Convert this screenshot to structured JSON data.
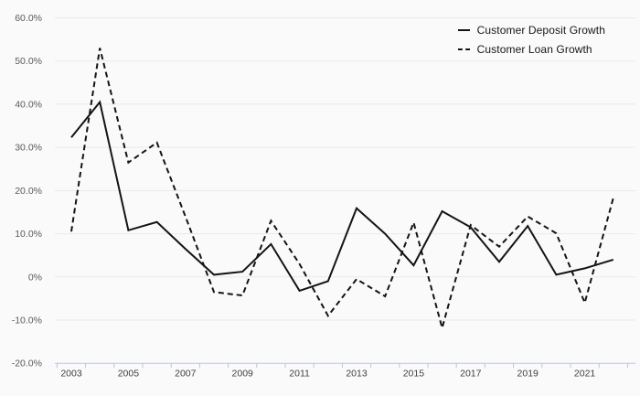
{
  "chart_data": {
    "type": "line",
    "x": [
      2003,
      2004,
      2005,
      2006,
      2007,
      2008,
      2009,
      2010,
      2011,
      2012,
      2013,
      2014,
      2015,
      2016,
      2017,
      2018,
      2019,
      2020,
      2021,
      2022
    ],
    "series": [
      {
        "name": "Customer Deposit Growth",
        "style": "solid",
        "values": [
          32.3,
          40.5,
          10.8,
          12.7,
          6.5,
          0.5,
          1.2,
          7.6,
          -3.2,
          -1.0,
          15.9,
          10.0,
          2.7,
          15.2,
          11.5,
          3.5,
          11.8,
          0.5,
          2.0,
          4.0
        ]
      },
      {
        "name": "Customer Loan Growth",
        "style": "dashed",
        "values": [
          10.5,
          53.0,
          26.5,
          31.1,
          14.0,
          -3.5,
          -4.3,
          13.0,
          3.0,
          -9.0,
          -0.5,
          -4.5,
          12.6,
          -11.8,
          12.0,
          7.0,
          14.0,
          10.1,
          -6.0,
          18.3
        ]
      }
    ],
    "title": "",
    "xlabel": "",
    "ylabel": "",
    "ylim": [
      -20,
      60
    ],
    "ytick_values": [
      60,
      50,
      40,
      30,
      20,
      10,
      0,
      -10,
      -20
    ],
    "ytick_labels": [
      "60.0%",
      "50.0%",
      "40.0%",
      "30.0%",
      "20.0%",
      "10.0%",
      "0%",
      "-10.0%",
      "-20.0%"
    ],
    "xtick_labels": [
      "2003",
      "2005",
      "2007",
      "2009",
      "2011",
      "2013",
      "2015",
      "2017",
      "2019",
      "2021"
    ],
    "xtick_years": [
      2003,
      2005,
      2007,
      2009,
      2011,
      2013,
      2015,
      2017,
      2019,
      2021
    ],
    "grid": true,
    "legend_position": "top-right",
    "colors": {
      "line": "#141414",
      "grid": "#e9e9e9",
      "axis": "#bcc5d8",
      "y_label": "#595a5e",
      "x_label": "#3e4046",
      "background": "#fafafa"
    }
  },
  "legend": {
    "items": [
      {
        "label": "Customer Deposit Growth"
      },
      {
        "label": "Customer Loan Growth"
      }
    ]
  }
}
